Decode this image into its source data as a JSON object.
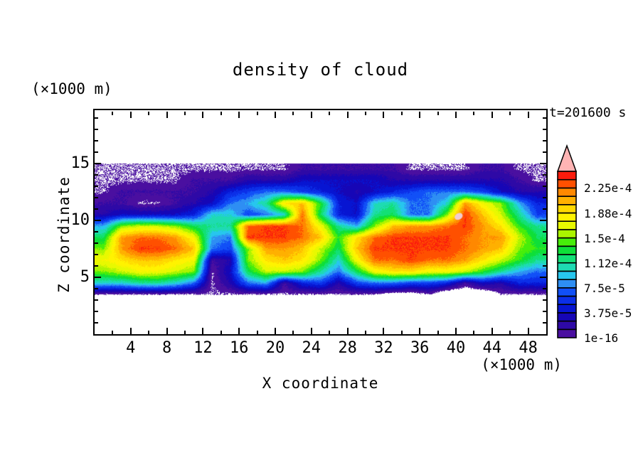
{
  "figure": {
    "title": "density of cloud",
    "background": "#ffffff"
  },
  "labels": {
    "top_left_unit": "(×1000 m)",
    "time_stamp": "t=201600 s",
    "x_axis_title": "X coordinate",
    "x_axis_unit": "(×1000 m)",
    "z_axis_title": "Z coordinate"
  },
  "axes": {
    "x_range": [
      0,
      50
    ],
    "z_range": [
      0,
      19.7
    ],
    "x_ticks_major": [
      4,
      8,
      12,
      16,
      20,
      24,
      28,
      32,
      36,
      40,
      44,
      48
    ],
    "x_ticks_minor": [
      2,
      6,
      10,
      14,
      18,
      22,
      26,
      30,
      34,
      38,
      42,
      46
    ],
    "z_ticks_major": [
      5,
      10,
      15
    ],
    "z_ticks_minor": [
      1,
      2,
      3,
      4,
      6,
      7,
      8,
      9,
      11,
      12,
      13,
      14,
      16,
      17,
      18,
      19
    ]
  },
  "colorbar": {
    "labels": [
      "2.25e-4",
      "1.88e-4",
      "1.5e-4",
      "1.12e-4",
      "7.5e-5",
      "3.75e-5",
      "1e-16"
    ],
    "label_level_boundaries": [
      18,
      15,
      12,
      9,
      6,
      3,
      0
    ],
    "segment_colors": [
      "#4a0fa0",
      "#2e09a6",
      "#1606b6",
      "#0715d2",
      "#0b2fe8",
      "#1150f7",
      "#2e8ef3",
      "#27c6ee",
      "#1edbb2",
      "#12e075",
      "#0edf38",
      "#47ee0a",
      "#abf400",
      "#e8f900",
      "#fff300",
      "#ffd800",
      "#ffb000",
      "#ff8800",
      "#ff5000",
      "#fb1b0c"
    ],
    "over_color": "#ffb4b4",
    "over_spot_color": "#f2cbcf"
  },
  "chart_data": {
    "type": "heatmap",
    "title": "density of cloud",
    "xlabel": "X coordinate (×1000 m)",
    "ylabel": "Z coordinate (×1000 m)",
    "time_label": "t=201600 s",
    "x_range": [
      0,
      50
    ],
    "z_data_range": [
      3.25,
      15
    ],
    "contour_interval": 1.25e-05,
    "lowest_level_value": "1e-16",
    "legend_position": "right",
    "note": "levels grid: integer k = filled contour band [k*1.25e-5,(k+1)*1.25e-5); 19 = >=2.375e-4 red; negative = no cloud (white)",
    "over_spot": {
      "x": 40.3,
      "z": 10.35
    },
    "grid": {
      "x": [
        1,
        3,
        5,
        7,
        9,
        11,
        13,
        15,
        17,
        19,
        21,
        23,
        25,
        27,
        29,
        31,
        33,
        35,
        37,
        39,
        41,
        43,
        45,
        47,
        49
      ],
      "z": [
        14.5,
        13.5,
        12.5,
        11.5,
        10.5,
        9.5,
        8.5,
        7.5,
        6.5,
        5.5,
        4.5,
        3.5
      ],
      "levels": [
        [
          0,
          0,
          0,
          0,
          0,
          0,
          0,
          0,
          0,
          0,
          0,
          1,
          1,
          1,
          1,
          1,
          1,
          0,
          0,
          0,
          0,
          1,
          1,
          0,
          0
        ],
        [
          0,
          0,
          0,
          0,
          0,
          1,
          1,
          1,
          2,
          2,
          2,
          3,
          3,
          3,
          3,
          3,
          2,
          2,
          2,
          2,
          2,
          2,
          2,
          1,
          0
        ],
        [
          0,
          1,
          1,
          1,
          1,
          1,
          2,
          4,
          5,
          6,
          6,
          5,
          4,
          3,
          2,
          3,
          4,
          5,
          6,
          6,
          6,
          5,
          3,
          2,
          2
        ],
        [
          1,
          1,
          0,
          0,
          1,
          2,
          3,
          6,
          7,
          9,
          15,
          16,
          11,
          4,
          3,
          8,
          9,
          6,
          6,
          8,
          17,
          14,
          12,
          7,
          4
        ],
        [
          2,
          3,
          3,
          3,
          3,
          4,
          8,
          8,
          5,
          6,
          8,
          18,
          10,
          4,
          3,
          9,
          10,
          6,
          6,
          12,
          19,
          16,
          13,
          9,
          5
        ],
        [
          7,
          12,
          13,
          13,
          12,
          10,
          9,
          9,
          18,
          19,
          19,
          18,
          14,
          9,
          7,
          12,
          16,
          17,
          17,
          18,
          19,
          17,
          15,
          11,
          9
        ],
        [
          10,
          17,
          18,
          18,
          17,
          14,
          7,
          6,
          19,
          19,
          19,
          18,
          16,
          11,
          15,
          18,
          19,
          19,
          19,
          19,
          18,
          17,
          17,
          13,
          10
        ],
        [
          12,
          17,
          19,
          19,
          18,
          16,
          6,
          5,
          12,
          17,
          17,
          16,
          13,
          10,
          16,
          19,
          19,
          19,
          19,
          19,
          18,
          17,
          16,
          12,
          11
        ],
        [
          14,
          15,
          16,
          16,
          15,
          14,
          1,
          2,
          12,
          15,
          16,
          15,
          12,
          8,
          14,
          18,
          18,
          19,
          18,
          18,
          17,
          15,
          13,
          11,
          9
        ],
        [
          12,
          13,
          14,
          14,
          13,
          12,
          0,
          3,
          10,
          13,
          13,
          12,
          9,
          6,
          10,
          14,
          15,
          15,
          14,
          14,
          13,
          11,
          9,
          7,
          6
        ],
        [
          8,
          8,
          9,
          9,
          8,
          6,
          0,
          2,
          6,
          7,
          1,
          4,
          5,
          2,
          5,
          6,
          6,
          5,
          5,
          4,
          1,
          3,
          2,
          4,
          4
        ],
        [
          0,
          0,
          0,
          0,
          0,
          0,
          0,
          0,
          0,
          0,
          0,
          0,
          0,
          0,
          0,
          0,
          -1,
          -1,
          0,
          -2,
          -2,
          -2,
          0,
          0,
          0
        ]
      ]
    }
  }
}
